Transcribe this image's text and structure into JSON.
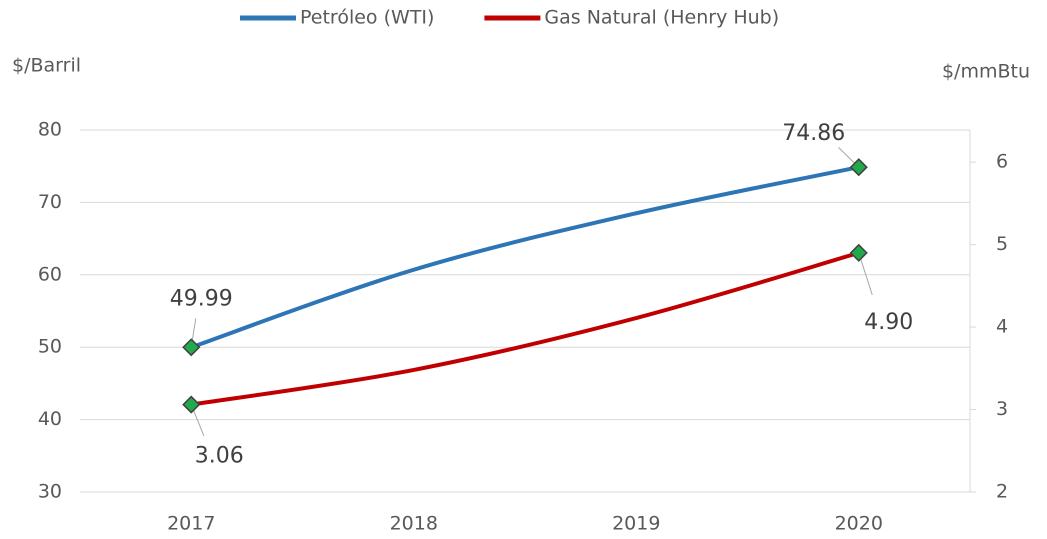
{
  "chart_data": {
    "type": "line",
    "y_label": "$/Barril",
    "y2_label": "$/mmBtu",
    "categories": [
      "2017",
      "2018",
      "2019",
      "2020"
    ],
    "series": [
      {
        "name": "Petróleo (WTI)",
        "color": "#2e75b6",
        "values": [
          49.99,
          60.7,
          68.5,
          74.86
        ],
        "value_labels": [
          "49.99",
          null,
          null,
          "74.86"
        ]
      },
      {
        "name": "Gas Natural (Henry Hub)",
        "color": "#c00000",
        "axis": "y2",
        "values": [
          3.06,
          3.48,
          4.11,
          4.9
        ],
        "value_labels": [
          "3.06",
          null,
          null,
          "4.90"
        ]
      }
    ],
    "marker_color": "#22a94b",
    "ylim": [
      30,
      80
    ],
    "yticks": [
      30,
      40,
      50,
      60,
      70,
      80
    ],
    "y2lim": [
      2,
      6.39
    ],
    "y2ticks": [
      2,
      3,
      4,
      5,
      6
    ],
    "grid": true,
    "legend": "top"
  }
}
